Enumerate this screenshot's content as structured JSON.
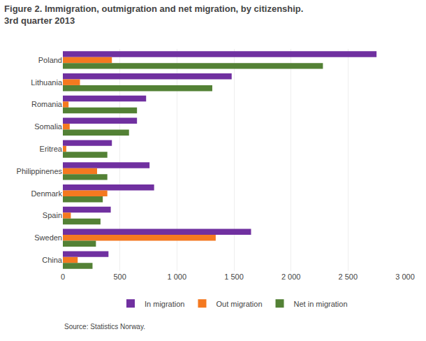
{
  "chart_data": {
    "type": "bar",
    "orientation": "horizontal",
    "title": "Figure 2. Immigration, outmigration and net migration, by citizenship.",
    "subtitle": "3rd quarter 2013",
    "annotations": [
      "Source: Statistics Norway."
    ],
    "categories": [
      "Poland",
      "Lithuania",
      "Romania",
      "Somalia",
      "Eritrea",
      "Philippinenes",
      "Denmark",
      "Spain",
      "Sweden",
      "China"
    ],
    "series": [
      {
        "name": "In migration",
        "color": "#7030a0",
        "values": [
          2750,
          1480,
          730,
          650,
          430,
          760,
          800,
          420,
          1650,
          400
        ]
      },
      {
        "name": "Out migration",
        "color": "#f47920",
        "values": [
          430,
          150,
          50,
          60,
          30,
          300,
          390,
          70,
          1340,
          130
        ]
      },
      {
        "name": "Net in migration",
        "color": "#538135",
        "values": [
          2280,
          1310,
          650,
          580,
          390,
          390,
          350,
          330,
          290,
          260
        ]
      }
    ],
    "xlim": [
      0,
      3000
    ],
    "xticks": [
      0,
      500,
      {
        "value": 1000,
        "label": "1 000"
      },
      {
        "value": 1500,
        "label": "1 500"
      },
      {
        "value": 2000,
        "label": "2 000"
      },
      {
        "value": 2500,
        "label": "2 500"
      },
      {
        "value": 3000,
        "label": "3 000"
      }
    ],
    "grid": true,
    "legend": "bottom"
  }
}
